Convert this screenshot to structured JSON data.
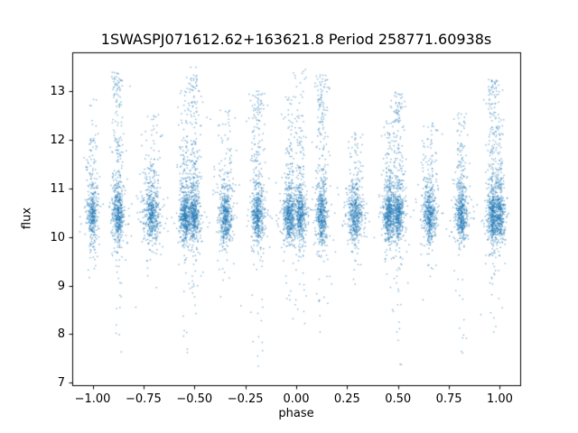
{
  "chart_data": {
    "type": "scatter",
    "title": "1SWASPJ071612.62+163621.8 Period 258771.60938s",
    "xlabel": "phase",
    "ylabel": "flux",
    "xlim": [
      -1.1,
      1.1
    ],
    "ylim": [
      6.95,
      13.8
    ],
    "grid": false,
    "x_ticks": [
      {
        "v": -1.0,
        "t": "−1.00"
      },
      {
        "v": -0.75,
        "t": "−0.75"
      },
      {
        "v": -0.5,
        "t": "−0.50"
      },
      {
        "v": -0.25,
        "t": "−0.25"
      },
      {
        "v": 0.0,
        "t": "0.00"
      },
      {
        "v": 0.25,
        "t": "0.25"
      },
      {
        "v": 0.5,
        "t": "0.50"
      },
      {
        "v": 0.75,
        "t": "0.75"
      },
      {
        "v": 1.0,
        "t": "1.00"
      }
    ],
    "y_ticks": [
      {
        "v": 7,
        "t": "7"
      },
      {
        "v": 8,
        "t": "8"
      },
      {
        "v": 9,
        "t": "9"
      },
      {
        "v": 10,
        "t": "10"
      },
      {
        "v": 11,
        "t": "11"
      },
      {
        "v": 12,
        "t": "12"
      },
      {
        "v": 13,
        "t": "13"
      }
    ],
    "marker_color": "#1f77b4",
    "marker_alpha": 0.55,
    "marker_size": 1.4,
    "core_flux_mean": 10.45,
    "core_flux_sd": 0.27,
    "stray_points": 30,
    "note": "Phase-folded light curve: dense clusters of points near flux 10.45 at nightly phase bands, each with sparse vertical outlier tails",
    "clusters": [
      {
        "p": -1.0,
        "top": 12.9,
        "bot": 9.2,
        "up": 0.45,
        "down": 0.08,
        "w": 0.012,
        "n": 330
      },
      {
        "p": -0.875,
        "top": 13.45,
        "bot": 7.5,
        "up": 0.9,
        "down": 0.25,
        "w": 0.013,
        "n": 420
      },
      {
        "p": -0.71,
        "top": 12.5,
        "bot": 8.9,
        "up": 0.5,
        "down": 0.1,
        "w": 0.018,
        "n": 460
      },
      {
        "p": -0.545,
        "top": 13.1,
        "bot": 7.25,
        "up": 0.65,
        "down": 0.2,
        "w": 0.013,
        "n": 420
      },
      {
        "p": -0.5,
        "top": 13.35,
        "bot": 7.9,
        "up": 0.85,
        "down": 0.25,
        "w": 0.014,
        "n": 420
      },
      {
        "p": -0.345,
        "top": 12.65,
        "bot": 8.9,
        "up": 0.5,
        "down": 0.12,
        "w": 0.016,
        "n": 440
      },
      {
        "p": -0.19,
        "top": 13.0,
        "bot": 7.3,
        "up": 0.8,
        "down": 0.25,
        "w": 0.014,
        "n": 430
      },
      {
        "p": -0.035,
        "top": 12.9,
        "bot": 8.6,
        "up": 0.6,
        "down": 0.15,
        "w": 0.014,
        "n": 430
      },
      {
        "p": 0.02,
        "top": 13.5,
        "bot": 7.9,
        "up": 0.55,
        "down": 0.18,
        "w": 0.013,
        "n": 400
      },
      {
        "p": 0.125,
        "top": 13.35,
        "bot": 8.0,
        "up": 0.85,
        "down": 0.2,
        "w": 0.013,
        "n": 420
      },
      {
        "p": 0.29,
        "top": 12.15,
        "bot": 9.0,
        "up": 0.45,
        "down": 0.1,
        "w": 0.017,
        "n": 450
      },
      {
        "p": 0.455,
        "top": 12.4,
        "bot": 8.8,
        "up": 0.55,
        "down": 0.12,
        "w": 0.013,
        "n": 420
      },
      {
        "p": 0.5,
        "top": 13.0,
        "bot": 7.2,
        "up": 0.8,
        "down": 0.25,
        "w": 0.014,
        "n": 420
      },
      {
        "p": 0.655,
        "top": 12.35,
        "bot": 8.9,
        "up": 0.5,
        "down": 0.1,
        "w": 0.016,
        "n": 440
      },
      {
        "p": 0.81,
        "top": 12.55,
        "bot": 7.6,
        "up": 0.65,
        "down": 0.2,
        "w": 0.013,
        "n": 420
      },
      {
        "p": 0.965,
        "top": 13.25,
        "bot": 8.0,
        "up": 0.85,
        "down": 0.22,
        "w": 0.013,
        "n": 420
      },
      {
        "p": 1.0,
        "top": 12.6,
        "bot": 9.3,
        "up": 0.45,
        "down": 0.1,
        "w": 0.012,
        "n": 330
      }
    ]
  }
}
